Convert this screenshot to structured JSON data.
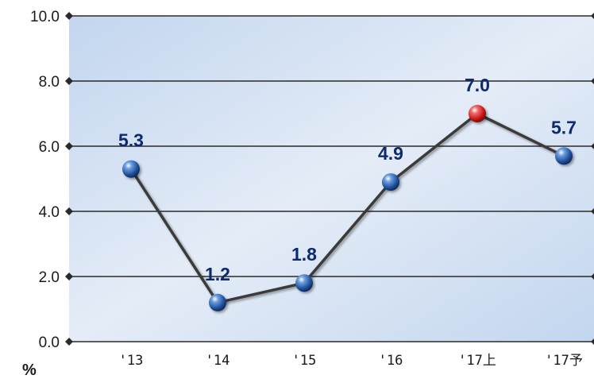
{
  "chart_data": {
    "type": "line",
    "categories": [
      "'13",
      "'14",
      "'15",
      "'16",
      "'17上",
      "'17予"
    ],
    "values": [
      5.3,
      1.2,
      1.8,
      4.9,
      7.0,
      5.7
    ],
    "data_labels": [
      "5.3",
      "1.2",
      "1.8",
      "4.9",
      "7.0",
      "5.7"
    ],
    "highlight_index": 4,
    "y_ticks": [
      "0.0",
      "2.0",
      "4.0",
      "6.0",
      "8.0",
      "10.0"
    ],
    "ylim": [
      0,
      10
    ],
    "ylabel": "%",
    "title": "",
    "xlabel": "",
    "grid": true,
    "colors": {
      "point": "#1e4f9a",
      "highlight_point": "#c81414",
      "line": "#3a3a3a",
      "label": "#0e2a6e"
    }
  }
}
